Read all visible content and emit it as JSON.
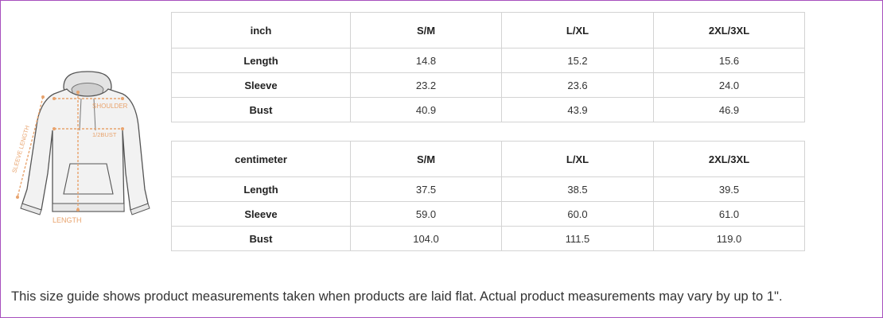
{
  "diagram": {
    "labels": {
      "shoulder": "SHOULDER",
      "bust": "1/2BUST",
      "sleeve_length": "SLEEVE LENGTH",
      "length": "LENGTH"
    },
    "accent_color": "#e8a36d",
    "outline_color": "#555555"
  },
  "inch_table": {
    "headers": [
      "inch",
      "S/M",
      "L/XL",
      "2XL/3XL"
    ],
    "rows": [
      {
        "label": "Length",
        "values": [
          "14.8",
          "15.2",
          "15.6"
        ]
      },
      {
        "label": "Sleeve",
        "values": [
          "23.2",
          "23.6",
          "24.0"
        ]
      },
      {
        "label": "Bust",
        "values": [
          "40.9",
          "43.9",
          "46.9"
        ]
      }
    ]
  },
  "cm_table": {
    "headers": [
      "centimeter",
      "S/M",
      "L/XL",
      "2XL/3XL"
    ],
    "rows": [
      {
        "label": "Length",
        "values": [
          "37.5",
          "38.5",
          "39.5"
        ]
      },
      {
        "label": "Sleeve",
        "values": [
          "59.0",
          "60.0",
          "61.0"
        ]
      },
      {
        "label": "Bust",
        "values": [
          "104.0",
          "111.5",
          "119.0"
        ]
      }
    ]
  },
  "footnote": "This size guide shows product measurements taken when products are laid flat. Actual product measurements may vary by up to 1\".",
  "border_color": "#a74fbd"
}
